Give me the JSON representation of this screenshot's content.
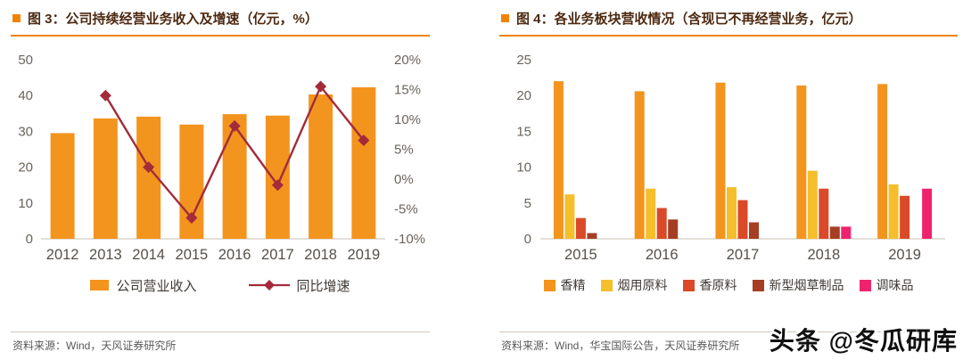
{
  "theme": {
    "accent_orange": "#F08300",
    "title_color": "#4D2A12",
    "axis_label_color": "#6B645C",
    "year_label_color": "#56504A",
    "source_color": "#595959"
  },
  "watermark": {
    "text": "头条 @冬瓜研库"
  },
  "icons": {
    "figure_bullet": "orange-square"
  },
  "chart_data": [
    {
      "type": "bar",
      "combo": "bar+line-dual-axis",
      "title": "图 3：公司持续经营业务收入及增速（亿元，%）",
      "categories": [
        "2012",
        "2013",
        "2014",
        "2015",
        "2016",
        "2017",
        "2018",
        "2019"
      ],
      "series": [
        {
          "name": "公司营业收入",
          "kind": "bar",
          "axis": "left",
          "color": "#F3941E",
          "values": [
            29.5,
            33.6,
            34.1,
            31.9,
            34.8,
            34.4,
            40.3,
            42.3
          ]
        },
        {
          "name": "同比增速",
          "kind": "line",
          "axis": "right",
          "color": "#A32B3A",
          "values": [
            null,
            14.0,
            2.0,
            -6.5,
            8.9,
            -1.0,
            15.5,
            6.5
          ]
        }
      ],
      "left_axis": {
        "min": 0,
        "max": 50,
        "ticks": [
          0,
          10,
          20,
          30,
          40,
          50
        ]
      },
      "right_axis": {
        "min": -10,
        "max": 20,
        "ticks": [
          20,
          15,
          10,
          5,
          0,
          -5,
          -10
        ],
        "unit": "%"
      },
      "legend_position": "bottom",
      "grid": false,
      "source": "资料来源：Wind，天风证券研究所"
    },
    {
      "type": "bar",
      "combo": "grouped-bars",
      "title": "图 4：各业务板块营收情况（含现已不再经营业务，亿元）",
      "categories": [
        "2015",
        "2016",
        "2017",
        "2018",
        "2019"
      ],
      "series": [
        {
          "name": "香精",
          "color": "#F3941E",
          "values": [
            22.0,
            20.6,
            21.8,
            21.4,
            21.6
          ]
        },
        {
          "name": "烟用原料",
          "color": "#F5BE2B",
          "values": [
            6.2,
            7.0,
            7.2,
            9.5,
            7.6
          ]
        },
        {
          "name": "香原料",
          "color": "#DA4928",
          "values": [
            2.9,
            4.3,
            5.4,
            7.0,
            6.0
          ]
        },
        {
          "name": "新型烟草制品",
          "color": "#A63E23",
          "values": [
            0.8,
            2.7,
            2.3,
            1.7,
            0
          ]
        },
        {
          "name": "调味品",
          "color": "#EF236D",
          "values": [
            0,
            0,
            0,
            1.7,
            7.0
          ]
        }
      ],
      "y_axis": {
        "min": 0,
        "max": 25,
        "ticks": [
          0,
          5,
          10,
          15,
          20,
          25
        ]
      },
      "legend_position": "bottom",
      "grid": false,
      "source": "资料来源：Wind，华宝国际公告，天风证券研究所"
    }
  ]
}
